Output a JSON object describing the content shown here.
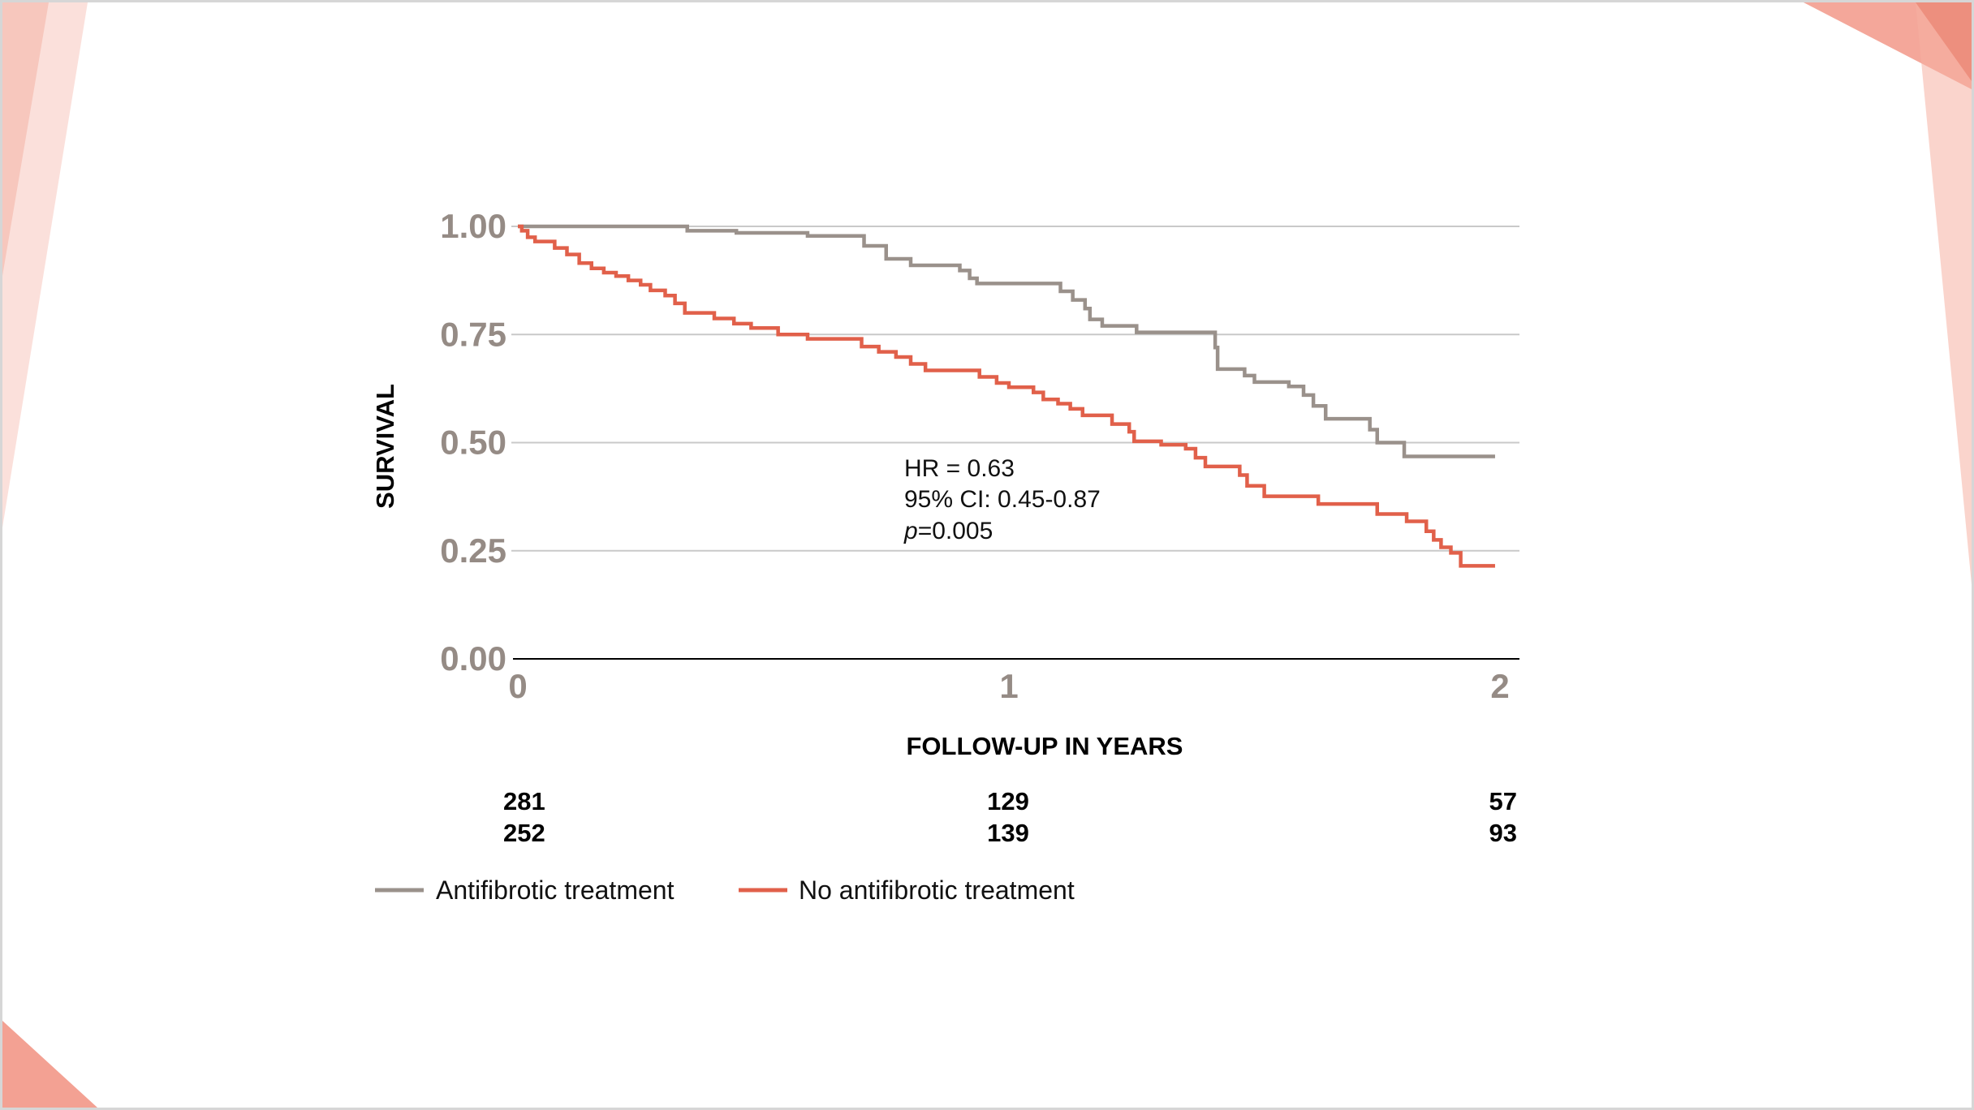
{
  "chart_data": {
    "type": "line",
    "xlabel": "FOLLOW-UP IN YEARS",
    "ylabel": "SURVIVAL",
    "xlim": [
      0,
      2
    ],
    "ylim": [
      0,
      1
    ],
    "x_ticks": [
      "0",
      "1",
      "2"
    ],
    "y_ticks": [
      "0.00",
      "0.25",
      "0.50",
      "0.75",
      "1.00"
    ],
    "grid": "horizontal",
    "legend_position": "bottom-left",
    "annotation": {
      "hr": "HR = 0.63",
      "ci": "95% CI: 0.45-0.87",
      "p_italic": "p",
      "p_rest": "=0.005"
    },
    "risk_table": [
      {
        "values": [
          "281",
          "129",
          "57"
        ]
      },
      {
        "values": [
          "252",
          "139",
          "93"
        ]
      }
    ],
    "series": [
      {
        "name": "Antifibrotic treatment",
        "color": "#9a918b",
        "steps": [
          [
            0,
            1.0
          ],
          [
            0.345,
            0.99
          ],
          [
            0.445,
            0.985
          ],
          [
            0.59,
            0.978
          ],
          [
            0.705,
            0.955
          ],
          [
            0.75,
            0.925
          ],
          [
            0.8,
            0.91
          ],
          [
            0.9,
            0.898
          ],
          [
            0.92,
            0.88
          ],
          [
            0.935,
            0.868
          ],
          [
            1.105,
            0.85
          ],
          [
            1.13,
            0.83
          ],
          [
            1.155,
            0.81
          ],
          [
            1.165,
            0.785
          ],
          [
            1.19,
            0.77
          ],
          [
            1.26,
            0.755
          ],
          [
            1.42,
            0.72
          ],
          [
            1.425,
            0.67
          ],
          [
            1.48,
            0.655
          ],
          [
            1.5,
            0.64
          ],
          [
            1.57,
            0.63
          ],
          [
            1.6,
            0.61
          ],
          [
            1.62,
            0.585
          ],
          [
            1.645,
            0.555
          ],
          [
            1.735,
            0.53
          ],
          [
            1.75,
            0.5
          ],
          [
            1.805,
            0.468
          ],
          [
            1.99,
            0.468
          ]
        ]
      },
      {
        "name": "No antifibrotic treatment",
        "color": "#e1604a",
        "steps": [
          [
            0,
            1.0
          ],
          [
            0.008,
            0.99
          ],
          [
            0.02,
            0.975
          ],
          [
            0.035,
            0.965
          ],
          [
            0.075,
            0.95
          ],
          [
            0.1,
            0.935
          ],
          [
            0.125,
            0.915
          ],
          [
            0.15,
            0.903
          ],
          [
            0.175,
            0.893
          ],
          [
            0.2,
            0.885
          ],
          [
            0.225,
            0.875
          ],
          [
            0.25,
            0.865
          ],
          [
            0.27,
            0.852
          ],
          [
            0.3,
            0.84
          ],
          [
            0.32,
            0.822
          ],
          [
            0.34,
            0.8
          ],
          [
            0.4,
            0.787
          ],
          [
            0.44,
            0.775
          ],
          [
            0.475,
            0.765
          ],
          [
            0.53,
            0.75
          ],
          [
            0.59,
            0.74
          ],
          [
            0.7,
            0.722
          ],
          [
            0.735,
            0.71
          ],
          [
            0.77,
            0.698
          ],
          [
            0.8,
            0.682
          ],
          [
            0.83,
            0.667
          ],
          [
            0.94,
            0.652
          ],
          [
            0.975,
            0.638
          ],
          [
            1.0,
            0.628
          ],
          [
            1.05,
            0.616
          ],
          [
            1.07,
            0.6
          ],
          [
            1.1,
            0.59
          ],
          [
            1.125,
            0.578
          ],
          [
            1.15,
            0.563
          ],
          [
            1.21,
            0.543
          ],
          [
            1.245,
            0.525
          ],
          [
            1.255,
            0.503
          ],
          [
            1.31,
            0.495
          ],
          [
            1.36,
            0.486
          ],
          [
            1.38,
            0.465
          ],
          [
            1.4,
            0.445
          ],
          [
            1.47,
            0.425
          ],
          [
            1.485,
            0.4
          ],
          [
            1.52,
            0.376
          ],
          [
            1.63,
            0.358
          ],
          [
            1.75,
            0.335
          ],
          [
            1.81,
            0.318
          ],
          [
            1.85,
            0.295
          ],
          [
            1.865,
            0.275
          ],
          [
            1.88,
            0.258
          ],
          [
            1.9,
            0.245
          ],
          [
            1.92,
            0.215
          ],
          [
            1.99,
            0.215
          ]
        ]
      }
    ]
  }
}
